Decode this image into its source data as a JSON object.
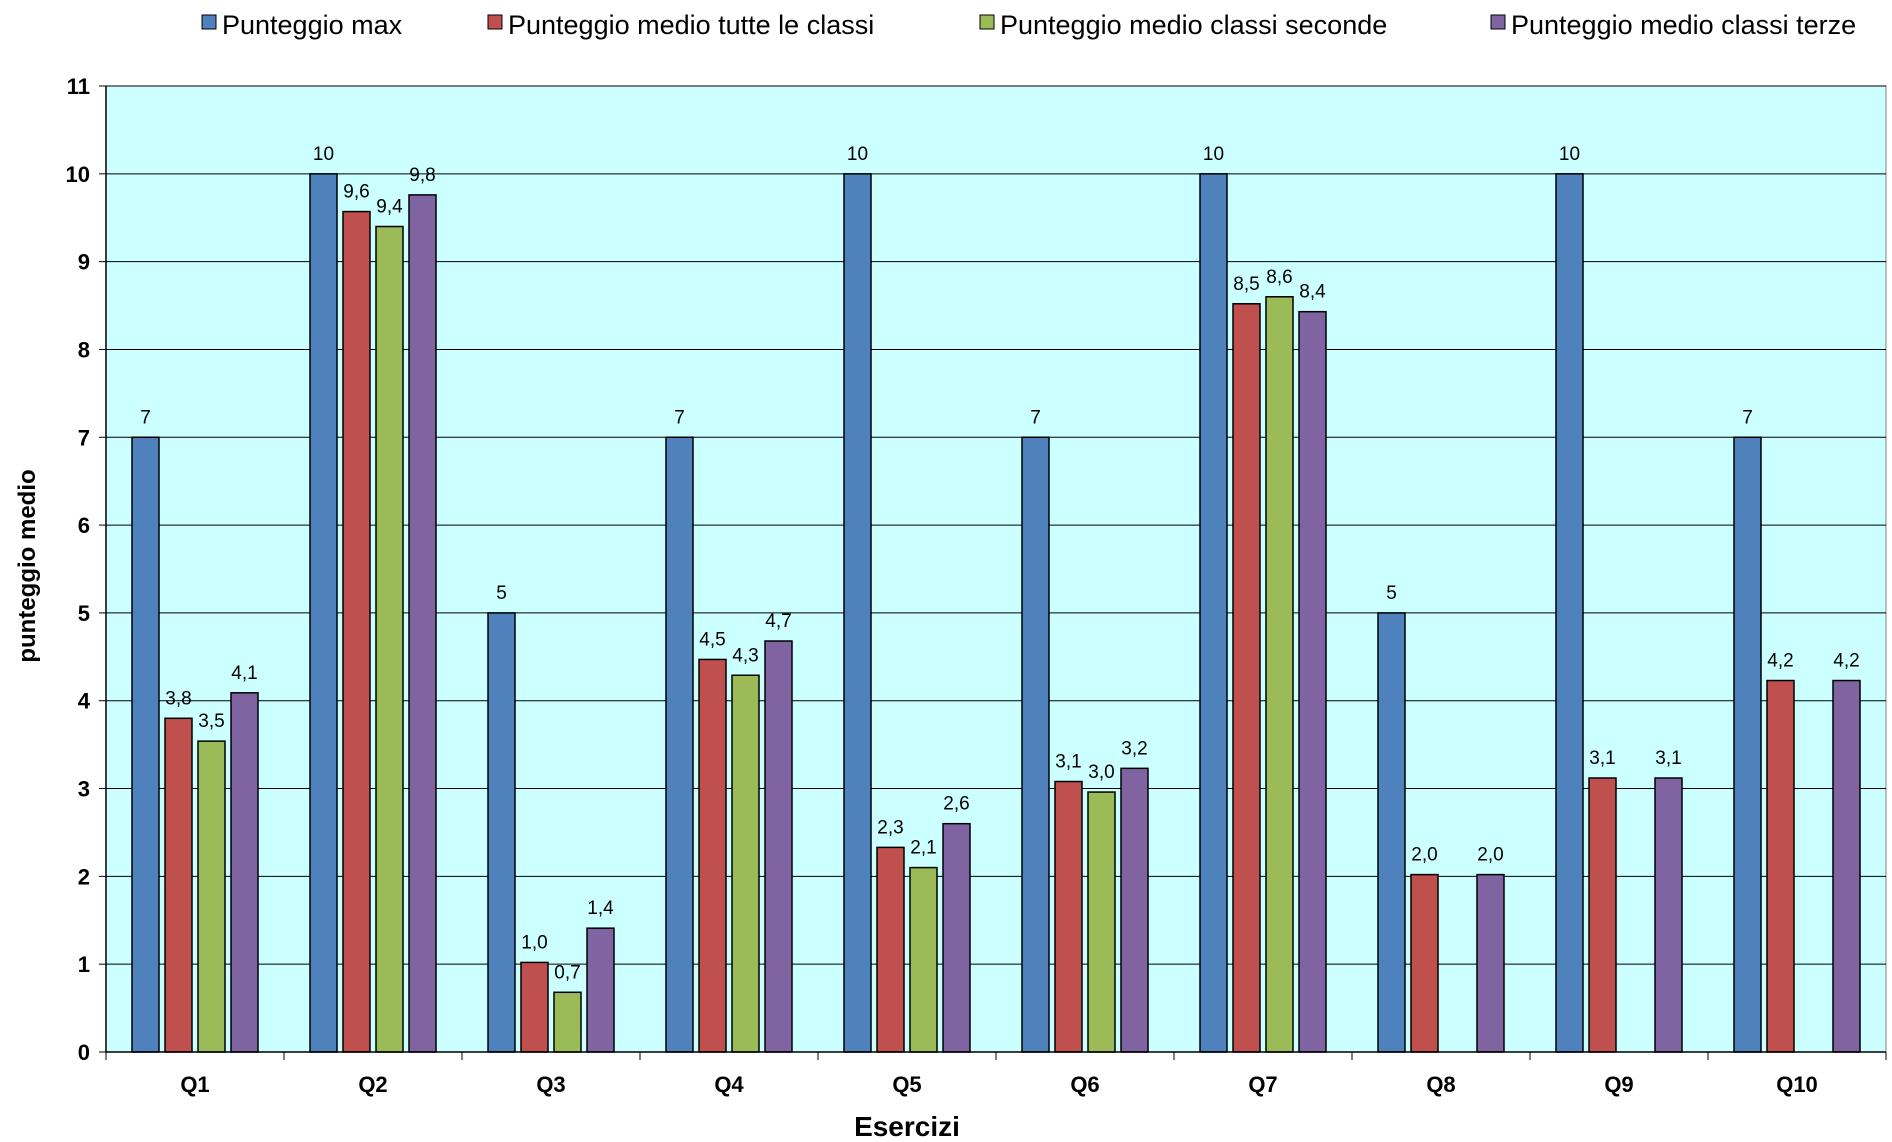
{
  "chart_data": {
    "type": "bar",
    "categories": [
      "Q1",
      "Q2",
      "Q3",
      "Q4",
      "Q5",
      "Q6",
      "Q7",
      "Q8",
      "Q9",
      "Q10"
    ],
    "series": [
      {
        "name": "Punteggio max",
        "color": "#4F81BD",
        "values": [
          7,
          10,
          5,
          7,
          10,
          7,
          10,
          5,
          10,
          7
        ],
        "labels": [
          "7",
          "10",
          "5",
          "7",
          "10",
          "7",
          "10",
          "5",
          "10",
          "7"
        ]
      },
      {
        "name": "Punteggio medio tutte le classi",
        "color": "#C0504D",
        "values": [
          3.8,
          9.57,
          1.02,
          4.47,
          2.33,
          3.08,
          8.52,
          2.02,
          3.12,
          4.23
        ],
        "labels": [
          "3,8",
          "9,6",
          "1,0",
          "4,5",
          "2,3",
          "3,1",
          "8,5",
          "2,0",
          "3,1",
          "4,2"
        ]
      },
      {
        "name": "Punteggio medio classi seconde",
        "color": "#9BBB59",
        "values": [
          3.54,
          9.4,
          0.68,
          4.29,
          2.1,
          2.96,
          8.6,
          null,
          null,
          null
        ],
        "labels": [
          "3,5",
          "9,4",
          "0,7",
          "4,3",
          "2,1",
          "3,0",
          "8,6",
          "",
          "",
          ""
        ]
      },
      {
        "name": "Punteggio medio classi terze",
        "color": "#8064A2",
        "values": [
          4.09,
          9.76,
          1.41,
          4.68,
          2.6,
          3.23,
          8.43,
          2.02,
          3.12,
          4.23
        ],
        "labels": [
          "4,1",
          "9,8",
          "1,4",
          "4,7",
          "2,6",
          "3,2",
          "8,4",
          "2,0",
          "3,1",
          "4,2"
        ]
      }
    ],
    "xlabel": "Esercizi",
    "ylabel": "punteggio  medio",
    "ylim": [
      0,
      11
    ],
    "yticks": [
      "0",
      "1",
      "2",
      "3",
      "4",
      "5",
      "6",
      "7",
      "8",
      "9",
      "10",
      "11"
    ],
    "grid": true,
    "legend_position": "top",
    "plot_background": "#CCFFFF"
  }
}
